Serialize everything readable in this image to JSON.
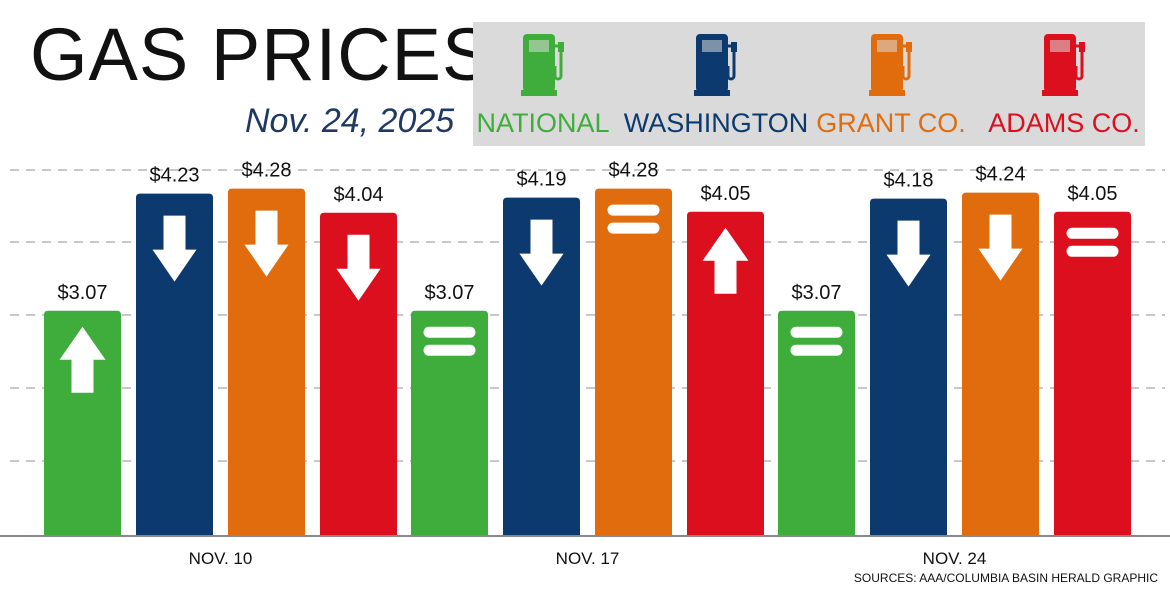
{
  "title": "GAS PRICES",
  "subtitle": "Nov. 24, 2025",
  "legend": [
    {
      "name": "NATIONAL",
      "color": "#3fad3b",
      "icon": "gas-pump-icon"
    },
    {
      "name": "WASHINGTON",
      "color": "#0d3a6e",
      "icon": "gas-pump-icon"
    },
    {
      "name": "GRANT CO.",
      "color": "#e06c0e",
      "icon": "gas-pump-icon"
    },
    {
      "name": "ADAMS CO.",
      "color": "#dc0f1f",
      "icon": "gas-pump-icon"
    }
  ],
  "source": "SOURCES: AAA/COLUMBIA BASIN HERALD GRAPHIC",
  "chart_data": {
    "type": "bar",
    "categories": [
      "NOV. 10",
      "NOV. 17",
      "NOV. 24"
    ],
    "series": [
      {
        "name": "NATIONAL",
        "color": "#3fad3b",
        "values": [
          3.07,
          3.07,
          3.07
        ],
        "labels": [
          "$3.07",
          "$3.07",
          "$3.07"
        ],
        "trend": [
          "up",
          "equal",
          "equal"
        ]
      },
      {
        "name": "WASHINGTON",
        "color": "#0d3a6e",
        "values": [
          4.23,
          4.19,
          4.18
        ],
        "labels": [
          "$4.23",
          "$4.19",
          "$4.18"
        ],
        "trend": [
          "down",
          "down",
          "down"
        ]
      },
      {
        "name": "GRANT CO.",
        "color": "#e06c0e",
        "values": [
          4.28,
          4.28,
          4.24
        ],
        "labels": [
          "$4.28",
          "$4.28",
          "$4.24"
        ],
        "trend": [
          "down",
          "equal",
          "down"
        ]
      },
      {
        "name": "ADAMS CO.",
        "color": "#dc0f1f",
        "values": [
          4.04,
          4.05,
          4.05
        ],
        "labels": [
          "$4.04",
          "$4.05",
          "$4.05"
        ],
        "trend": [
          "down",
          "up",
          "equal"
        ]
      }
    ],
    "ylim": [
      0,
      4.7
    ],
    "grid": true,
    "legend_position": "top-right"
  }
}
